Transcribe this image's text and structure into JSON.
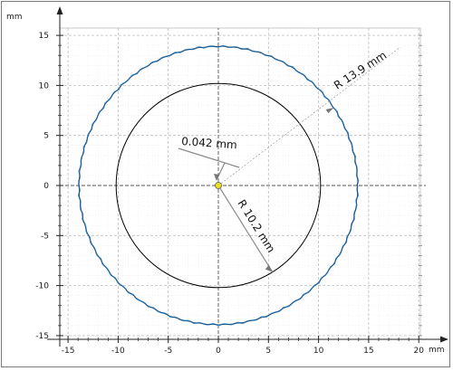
{
  "axes": {
    "x_unit": "mm",
    "y_unit": "mm",
    "x_ticks": [
      {
        "value": -15,
        "label": "-15"
      },
      {
        "value": -10,
        "label": "-10"
      },
      {
        "value": -5,
        "label": "-5"
      },
      {
        "value": 0,
        "label": "0"
      },
      {
        "value": 5,
        "label": "5"
      },
      {
        "value": 10,
        "label": "10"
      },
      {
        "value": 15,
        "label": "15"
      },
      {
        "value": 20,
        "label": "20"
      }
    ],
    "y_ticks": [
      {
        "value": 15,
        "label": "15"
      },
      {
        "value": 10,
        "label": "10"
      },
      {
        "value": 5,
        "label": "5"
      },
      {
        "value": 0,
        "label": "0"
      },
      {
        "value": -5,
        "label": "-5"
      },
      {
        "value": -10,
        "label": "-10"
      },
      {
        "value": -15,
        "label": "-15"
      }
    ],
    "x_range": [
      -16.5,
      20
    ],
    "y_range": [
      -15.5,
      16
    ]
  },
  "shapes": {
    "outer_circle": {
      "radius": 13.9,
      "color": "#2f7fc0"
    },
    "inner_circle": {
      "radius": 10.2,
      "color": "#000000"
    },
    "center_point": {
      "x": 0,
      "y": 0,
      "color": "#e8e020"
    }
  },
  "annotations": {
    "offset_label": "0.042 mm",
    "outer_radius_label": "R 13.9 mm",
    "inner_radius_label": "R 10.2 mm"
  }
}
